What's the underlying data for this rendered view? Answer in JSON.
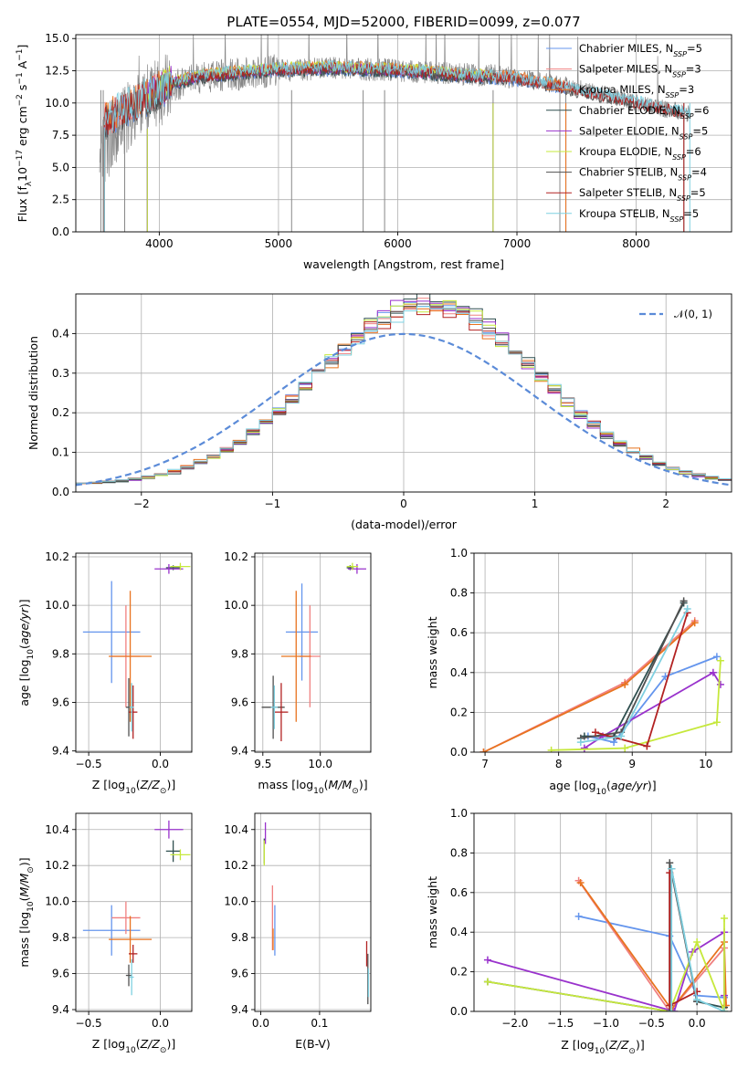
{
  "title": "PLATE=0554, MJD=52000, FIBERID=0099, z=0.077",
  "colors": {
    "Chabrier MILES": "#6495ed",
    "Salpeter MILES": "#f08080",
    "Kroupa MILES": "#e8731f",
    "Chabrier ELODIE": "#2f4f4f",
    "Salpeter ELODIE": "#9932cc",
    "Kroupa ELODIE": "#c6e83c",
    "Chabrier STELIB": "#505050",
    "Salpeter STELIB": "#b22222",
    "Kroupa STELIB": "#7fd0e0"
  },
  "legend_spectrum": [
    {
      "label": "Chabrier MILES, N",
      "sub": "SSP",
      "suffix": "=5",
      "color": "#6495ed"
    },
    {
      "label": "Salpeter MILES, N",
      "sub": "SSP",
      "suffix": "=3",
      "color": "#f08080"
    },
    {
      "label": "Kroupa MILES, N",
      "sub": "SSP",
      "suffix": "=3",
      "color": "#e8731f"
    },
    {
      "label": "Chabrier ELODIE, N",
      "sub": "SSP",
      "suffix": "=6",
      "color": "#2f4f4f"
    },
    {
      "label": "Salpeter ELODIE, N",
      "sub": "SSP",
      "suffix": "=5",
      "color": "#9932cc"
    },
    {
      "label": "Kroupa ELODIE, N",
      "sub": "SSP",
      "suffix": "=6",
      "color": "#c6e83c"
    },
    {
      "label": "Chabrier STELIB, N",
      "sub": "SSP",
      "suffix": "=4",
      "color": "#505050"
    },
    {
      "label": "Salpeter STELIB, N",
      "sub": "SSP",
      "suffix": "=5",
      "color": "#b22222"
    },
    {
      "label": "Kroupa STELIB, N",
      "sub": "SSP",
      "suffix": "=5",
      "color": "#7fd0e0"
    }
  ],
  "legend_hist": {
    "label": "𝒩(0, 1)",
    "color": "#5b8bd8"
  },
  "chart_data": [
    {
      "id": "spectrum",
      "type": "line",
      "xlabel": "wavelength [Angstrom, rest frame]",
      "ylabel_parts": [
        "Flux [f",
        "λ",
        "10",
        "−17",
        " erg cm",
        "−2",
        " s",
        "−1",
        " A",
        "−1",
        "]"
      ],
      "xlim": [
        3300,
        8800
      ],
      "ylim": [
        0,
        15.3
      ],
      "xticks": [
        4000,
        5000,
        6000,
        7000,
        8000
      ],
      "yticks": [
        0.0,
        2.5,
        5.0,
        7.5,
        10.0,
        12.5,
        15.0
      ],
      "data_trend": {
        "x": [
          3500,
          3700,
          3900,
          4100,
          4300,
          4600,
          5000,
          5400,
          5800,
          6200,
          6600,
          7000,
          7400,
          7800,
          8200,
          8500
        ],
        "y": [
          6.0,
          8.5,
          10.3,
          11.2,
          11.8,
          12.2,
          12.5,
          12.7,
          12.6,
          12.4,
          12.2,
          12.0,
          11.4,
          10.5,
          9.6,
          9.1
        ]
      },
      "model_trend": {
        "x": [
          3500,
          3700,
          3900,
          4100,
          4300,
          4600,
          5000,
          5400,
          5800,
          6200,
          6600,
          7000,
          7400,
          7800,
          8200,
          8500
        ],
        "y": [
          8.5,
          9.5,
          10.5,
          11.5,
          12.0,
          12.3,
          12.6,
          12.7,
          12.6,
          12.4,
          12.1,
          11.9,
          11.2,
          10.4,
          9.6,
          9.1
        ]
      },
      "data_range": [
        3500,
        8450
      ],
      "models_range": {
        "Chabrier MILES": [
          3540,
          7410
        ],
        "Salpeter MILES": [
          3540,
          7410
        ],
        "Kroupa MILES": [
          3540,
          7410
        ],
        "Chabrier ELODIE": [
          3900,
          6800
        ],
        "Salpeter ELODIE": [
          3900,
          6800
        ],
        "Kroupa ELODIE": [
          3900,
          6800
        ],
        "Chabrier STELIB": [
          3540,
          8400
        ],
        "Salpeter STELIB": [
          3540,
          8400
        ],
        "Kroupa STELIB": [
          3540,
          8450
        ]
      },
      "drops": [
        3510,
        3530,
        3710,
        3900,
        5110,
        5710,
        5890,
        6800,
        7360,
        7410
      ]
    },
    {
      "id": "residual_hist",
      "type": "step-histogram",
      "xlabel": "(data-model)/error",
      "ylabel": "Normed distribution",
      "xlim": [
        -2.5,
        2.5
      ],
      "ylim": [
        0,
        0.5
      ],
      "xticks": [
        -2,
        -1,
        0,
        1,
        2
      ],
      "xtick_labels": [
        "−2",
        "−1",
        "0",
        "1",
        "2"
      ],
      "yticks": [
        0.0,
        0.1,
        0.2,
        0.3,
        0.4
      ],
      "bin_width": 0.1,
      "histogram_center": 0.2,
      "histogram_sigma": 0.85,
      "normal_curve": {
        "mean": 0,
        "sigma": 1
      }
    },
    {
      "id": "age_vs_Z",
      "type": "errorbar",
      "xlabel": "Z [log10(Z/Z⊙)]",
      "ylabel": "age  [log10(age/yr)]",
      "xlim": [
        -0.59,
        0.22
      ],
      "ylim": [
        9.395,
        10.215
      ],
      "xticks": [
        -0.5,
        0.0
      ],
      "xtick_labels": [
        "−0.5",
        "0.0"
      ],
      "yticks": [
        9.4,
        9.6,
        9.8,
        10.0,
        10.2
      ],
      "points": [
        {
          "model": "Chabrier MILES",
          "x": -0.34,
          "y": 9.89,
          "xerr": 0.2,
          "yerr": 0.21
        },
        {
          "model": "Salpeter MILES",
          "x": -0.24,
          "y": 9.79,
          "xerr": 0.1,
          "yerr": 0.21
        },
        {
          "model": "Kroupa MILES",
          "x": -0.21,
          "y": 9.79,
          "xerr": 0.15,
          "yerr": 0.27
        },
        {
          "model": "Chabrier ELODIE",
          "x": 0.09,
          "y": 10.155,
          "xerr": 0.05,
          "yerr": 0.01
        },
        {
          "model": "Salpeter ELODIE",
          "x": 0.06,
          "y": 10.15,
          "xerr": 0.1,
          "yerr": 0.02
        },
        {
          "model": "Kroupa ELODIE",
          "x": 0.14,
          "y": 10.16,
          "xerr": 0.07,
          "yerr": 0.015
        },
        {
          "model": "Chabrier STELIB",
          "x": -0.22,
          "y": 9.58,
          "xerr": 0.02,
          "yerr": 0.12
        },
        {
          "model": "Salpeter STELIB",
          "x": -0.19,
          "y": 9.56,
          "xerr": 0.03,
          "yerr": 0.11
        },
        {
          "model": "Kroupa STELIB",
          "x": -0.2,
          "y": 9.58,
          "xerr": 0.015,
          "yerr": 0.1
        }
      ]
    },
    {
      "id": "age_vs_mass",
      "type": "errorbar",
      "xlabel": "mass [log10(M/M⊙)]",
      "ylabel": "",
      "xlim": [
        9.43,
        10.44
      ],
      "ylim": [
        9.395,
        10.215
      ],
      "xticks": [
        9.5,
        10.0
      ],
      "xtick_labels": [
        "9.5",
        "10.0"
      ],
      "yticks": [
        9.4,
        9.6,
        9.8,
        10.0,
        10.2
      ],
      "points": [
        {
          "model": "Chabrier MILES",
          "x": 9.84,
          "y": 9.89,
          "xerr": 0.14,
          "yerr": 0.2
        },
        {
          "model": "Salpeter MILES",
          "x": 9.91,
          "y": 9.79,
          "xerr": 0.09,
          "yerr": 0.21
        },
        {
          "model": "Kroupa MILES",
          "x": 9.79,
          "y": 9.79,
          "xerr": 0.13,
          "yerr": 0.27
        },
        {
          "model": "Chabrier ELODIE",
          "x": 10.26,
          "y": 10.155,
          "xerr": 0.03,
          "yerr": 0.01
        },
        {
          "model": "Salpeter ELODIE",
          "x": 10.32,
          "y": 10.15,
          "xerr": 0.08,
          "yerr": 0.02
        },
        {
          "model": "Kroupa ELODIE",
          "x": 10.28,
          "y": 10.16,
          "xerr": 0.05,
          "yerr": 0.015
        },
        {
          "model": "Chabrier STELIB",
          "x": 9.59,
          "y": 9.58,
          "xerr": 0.1,
          "yerr": 0.13
        },
        {
          "model": "Salpeter STELIB",
          "x": 9.66,
          "y": 9.56,
          "xerr": 0.06,
          "yerr": 0.12
        },
        {
          "model": "Kroupa STELIB",
          "x": 9.6,
          "y": 9.58,
          "xerr": 0.03,
          "yerr": 0.09
        }
      ]
    },
    {
      "id": "massweight_vs_age",
      "type": "line",
      "xlabel": "age  [log10(age/yr)]",
      "ylabel": "mass weight",
      "xlim": [
        6.85,
        10.35
      ],
      "ylim": [
        0,
        1.0
      ],
      "xticks": [
        7,
        8,
        9,
        10
      ],
      "yticks": [
        0.0,
        0.2,
        0.4,
        0.6,
        0.8,
        1.0
      ],
      "series": [
        {
          "model": "Chabrier MILES",
          "x": [
            8.4,
            8.75,
            9.45,
            10.15
          ],
          "y": [
            0.08,
            0.05,
            0.38,
            0.48
          ]
        },
        {
          "model": "Salpeter MILES",
          "x": [
            6.98,
            8.9,
            9.85
          ],
          "y": [
            0.0,
            0.35,
            0.66
          ]
        },
        {
          "model": "Kroupa MILES",
          "x": [
            6.98,
            8.9,
            9.85
          ],
          "y": [
            0.0,
            0.34,
            0.65
          ]
        },
        {
          "model": "Chabrier ELODIE",
          "x": [
            8.35,
            8.75,
            9.7
          ],
          "y": [
            0.08,
            0.08,
            0.75
          ]
        },
        {
          "model": "Salpeter ELODIE",
          "x": [
            8.35,
            8.6,
            10.1,
            10.2
          ],
          "y": [
            0.02,
            0.08,
            0.4,
            0.34
          ]
        },
        {
          "model": "Kroupa ELODIE",
          "x": [
            7.9,
            8.9,
            10.15,
            10.2
          ],
          "y": [
            0.01,
            0.02,
            0.15,
            0.46
          ]
        },
        {
          "model": "Chabrier STELIB",
          "x": [
            8.3,
            8.85,
            9.7
          ],
          "y": [
            0.07,
            0.1,
            0.76
          ]
        },
        {
          "model": "Salpeter STELIB",
          "x": [
            8.5,
            9.2,
            9.75
          ],
          "y": [
            0.1,
            0.03,
            0.7
          ]
        },
        {
          "model": "Kroupa STELIB",
          "x": [
            8.3,
            8.85,
            9.75
          ],
          "y": [
            0.05,
            0.08,
            0.72
          ]
        }
      ]
    },
    {
      "id": "mass_vs_Z",
      "type": "errorbar",
      "xlabel": "Z [log10(Z/Z⊙)]",
      "ylabel": "mass [log10(M/M⊙)]",
      "xlim": [
        -0.59,
        0.22
      ],
      "ylim": [
        9.39,
        10.49
      ],
      "xticks": [
        -0.5,
        0.0
      ],
      "xtick_labels": [
        "−0.5",
        "0.0"
      ],
      "yticks": [
        9.4,
        9.6,
        9.8,
        10.0,
        10.2,
        10.4
      ],
      "points": [
        {
          "model": "Chabrier MILES",
          "x": -0.34,
          "y": 9.84,
          "xerr": 0.2,
          "yerr": 0.14
        },
        {
          "model": "Salpeter MILES",
          "x": -0.24,
          "y": 9.91,
          "xerr": 0.1,
          "yerr": 0.09
        },
        {
          "model": "Kroupa MILES",
          "x": -0.21,
          "y": 9.79,
          "xerr": 0.15,
          "yerr": 0.13
        },
        {
          "model": "Chabrier ELODIE",
          "x": 0.09,
          "y": 10.28,
          "xerr": 0.05,
          "yerr": 0.06
        },
        {
          "model": "Salpeter ELODIE",
          "x": 0.06,
          "y": 10.4,
          "xerr": 0.1,
          "yerr": 0.05
        },
        {
          "model": "Kroupa ELODIE",
          "x": 0.14,
          "y": 10.26,
          "xerr": 0.07,
          "yerr": 0.03
        },
        {
          "model": "Chabrier STELIB",
          "x": -0.22,
          "y": 9.59,
          "xerr": 0.02,
          "yerr": 0.06
        },
        {
          "model": "Salpeter STELIB",
          "x": -0.19,
          "y": 9.71,
          "xerr": 0.03,
          "yerr": 0.05
        },
        {
          "model": "Kroupa STELIB",
          "x": -0.2,
          "y": 9.58,
          "xerr": 0.015,
          "yerr": 0.1
        }
      ]
    },
    {
      "id": "mass_vs_EBV",
      "type": "errorbar",
      "xlabel": "E(B-V)",
      "ylabel": "",
      "xlim": [
        -0.01,
        0.187
      ],
      "ylim": [
        9.39,
        10.49
      ],
      "xticks": [
        0.0,
        0.1
      ],
      "xtick_labels": [
        "0.0",
        "0.1"
      ],
      "yticks": [
        9.4,
        9.6,
        9.8,
        10.0,
        10.2,
        10.4
      ],
      "points": [
        {
          "model": "Chabrier MILES",
          "x": 0.024,
          "y": 9.84,
          "xerr": 0.0,
          "yerr": 0.14
        },
        {
          "model": "Salpeter MILES",
          "x": 0.02,
          "y": 9.91,
          "xerr": 0.0,
          "yerr": 0.18
        },
        {
          "model": "Kroupa MILES",
          "x": 0.021,
          "y": 9.79,
          "xerr": 0.0,
          "yerr": 0.06
        },
        {
          "model": "Chabrier ELODIE",
          "x": 0.006,
          "y": 10.28,
          "xerr": 0.0,
          "yerr": 0.07
        },
        {
          "model": "Salpeter ELODIE",
          "x": 0.008,
          "y": 10.38,
          "xerr": 0.0,
          "yerr": 0.06
        },
        {
          "model": "Kroupa ELODIE",
          "x": 0.006,
          "y": 10.27,
          "xerr": 0.0,
          "yerr": 0.07
        },
        {
          "model": "Chabrier STELIB",
          "x": 0.182,
          "y": 9.57,
          "xerr": 0.0,
          "yerr": 0.14
        },
        {
          "model": "Salpeter STELIB",
          "x": 0.18,
          "y": 9.71,
          "xerr": 0.0,
          "yerr": 0.07
        },
        {
          "model": "Kroupa STELIB",
          "x": 0.183,
          "y": 9.55,
          "xerr": 0.0,
          "yerr": 0.08
        }
      ]
    },
    {
      "id": "massweight_vs_Z",
      "type": "line",
      "xlabel": "Z [log10(Z/Z⊙)]",
      "ylabel": "mass weight",
      "xlim": [
        -2.45,
        0.38
      ],
      "ylim": [
        0,
        1.0
      ],
      "xticks": [
        -2.0,
        -1.5,
        -1.0,
        -0.5,
        0.0
      ],
      "xtick_labels": [
        "−2.0",
        "−1.5",
        "−1.0",
        "−0.5",
        "0.0"
      ],
      "yticks": [
        0.0,
        0.2,
        0.4,
        0.6,
        0.8,
        1.0
      ],
      "series": [
        {
          "model": "Chabrier MILES",
          "x": [
            -1.3,
            -0.3,
            0.0,
            0.3
          ],
          "y": [
            0.48,
            0.38,
            0.08,
            0.07
          ]
        },
        {
          "model": "Salpeter MILES",
          "x": [
            -1.3,
            -0.3,
            0.3,
            0.3
          ],
          "y": [
            0.66,
            0.0,
            0.32,
            0.02
          ]
        },
        {
          "model": "Kroupa MILES",
          "x": [
            -1.28,
            -0.28,
            0.3,
            0.32
          ],
          "y": [
            0.65,
            0.01,
            0.35,
            0.03
          ]
        },
        {
          "model": "Chabrier ELODIE",
          "x": [
            -2.3,
            -0.3,
            -0.28,
            0.0,
            0.3
          ],
          "y": [
            0.15,
            0.0,
            0.72,
            0.05,
            0.02
          ]
        },
        {
          "model": "Salpeter ELODIE",
          "x": [
            -2.3,
            -0.25,
            -0.05,
            0.3,
            0.3
          ],
          "y": [
            0.26,
            0.0,
            0.3,
            0.4,
            0.08
          ]
        },
        {
          "model": "Kroupa ELODIE",
          "x": [
            -2.3,
            -0.3,
            0.0,
            0.3,
            0.3
          ],
          "y": [
            0.15,
            0.0,
            0.35,
            0.0,
            0.47
          ]
        },
        {
          "model": "Chabrier STELIB",
          "x": [
            -0.3,
            -0.3,
            0.0
          ],
          "y": [
            0.0,
            0.75,
            0.05
          ]
        },
        {
          "model": "Salpeter STELIB",
          "x": [
            -0.3,
            -0.3,
            0.0
          ],
          "y": [
            0.7,
            0.03,
            0.1
          ]
        },
        {
          "model": "Kroupa STELIB",
          "x": [
            -0.28,
            -0.28,
            0.0,
            0.3
          ],
          "y": [
            0.0,
            0.72,
            0.06,
            0.0
          ]
        }
      ]
    }
  ]
}
